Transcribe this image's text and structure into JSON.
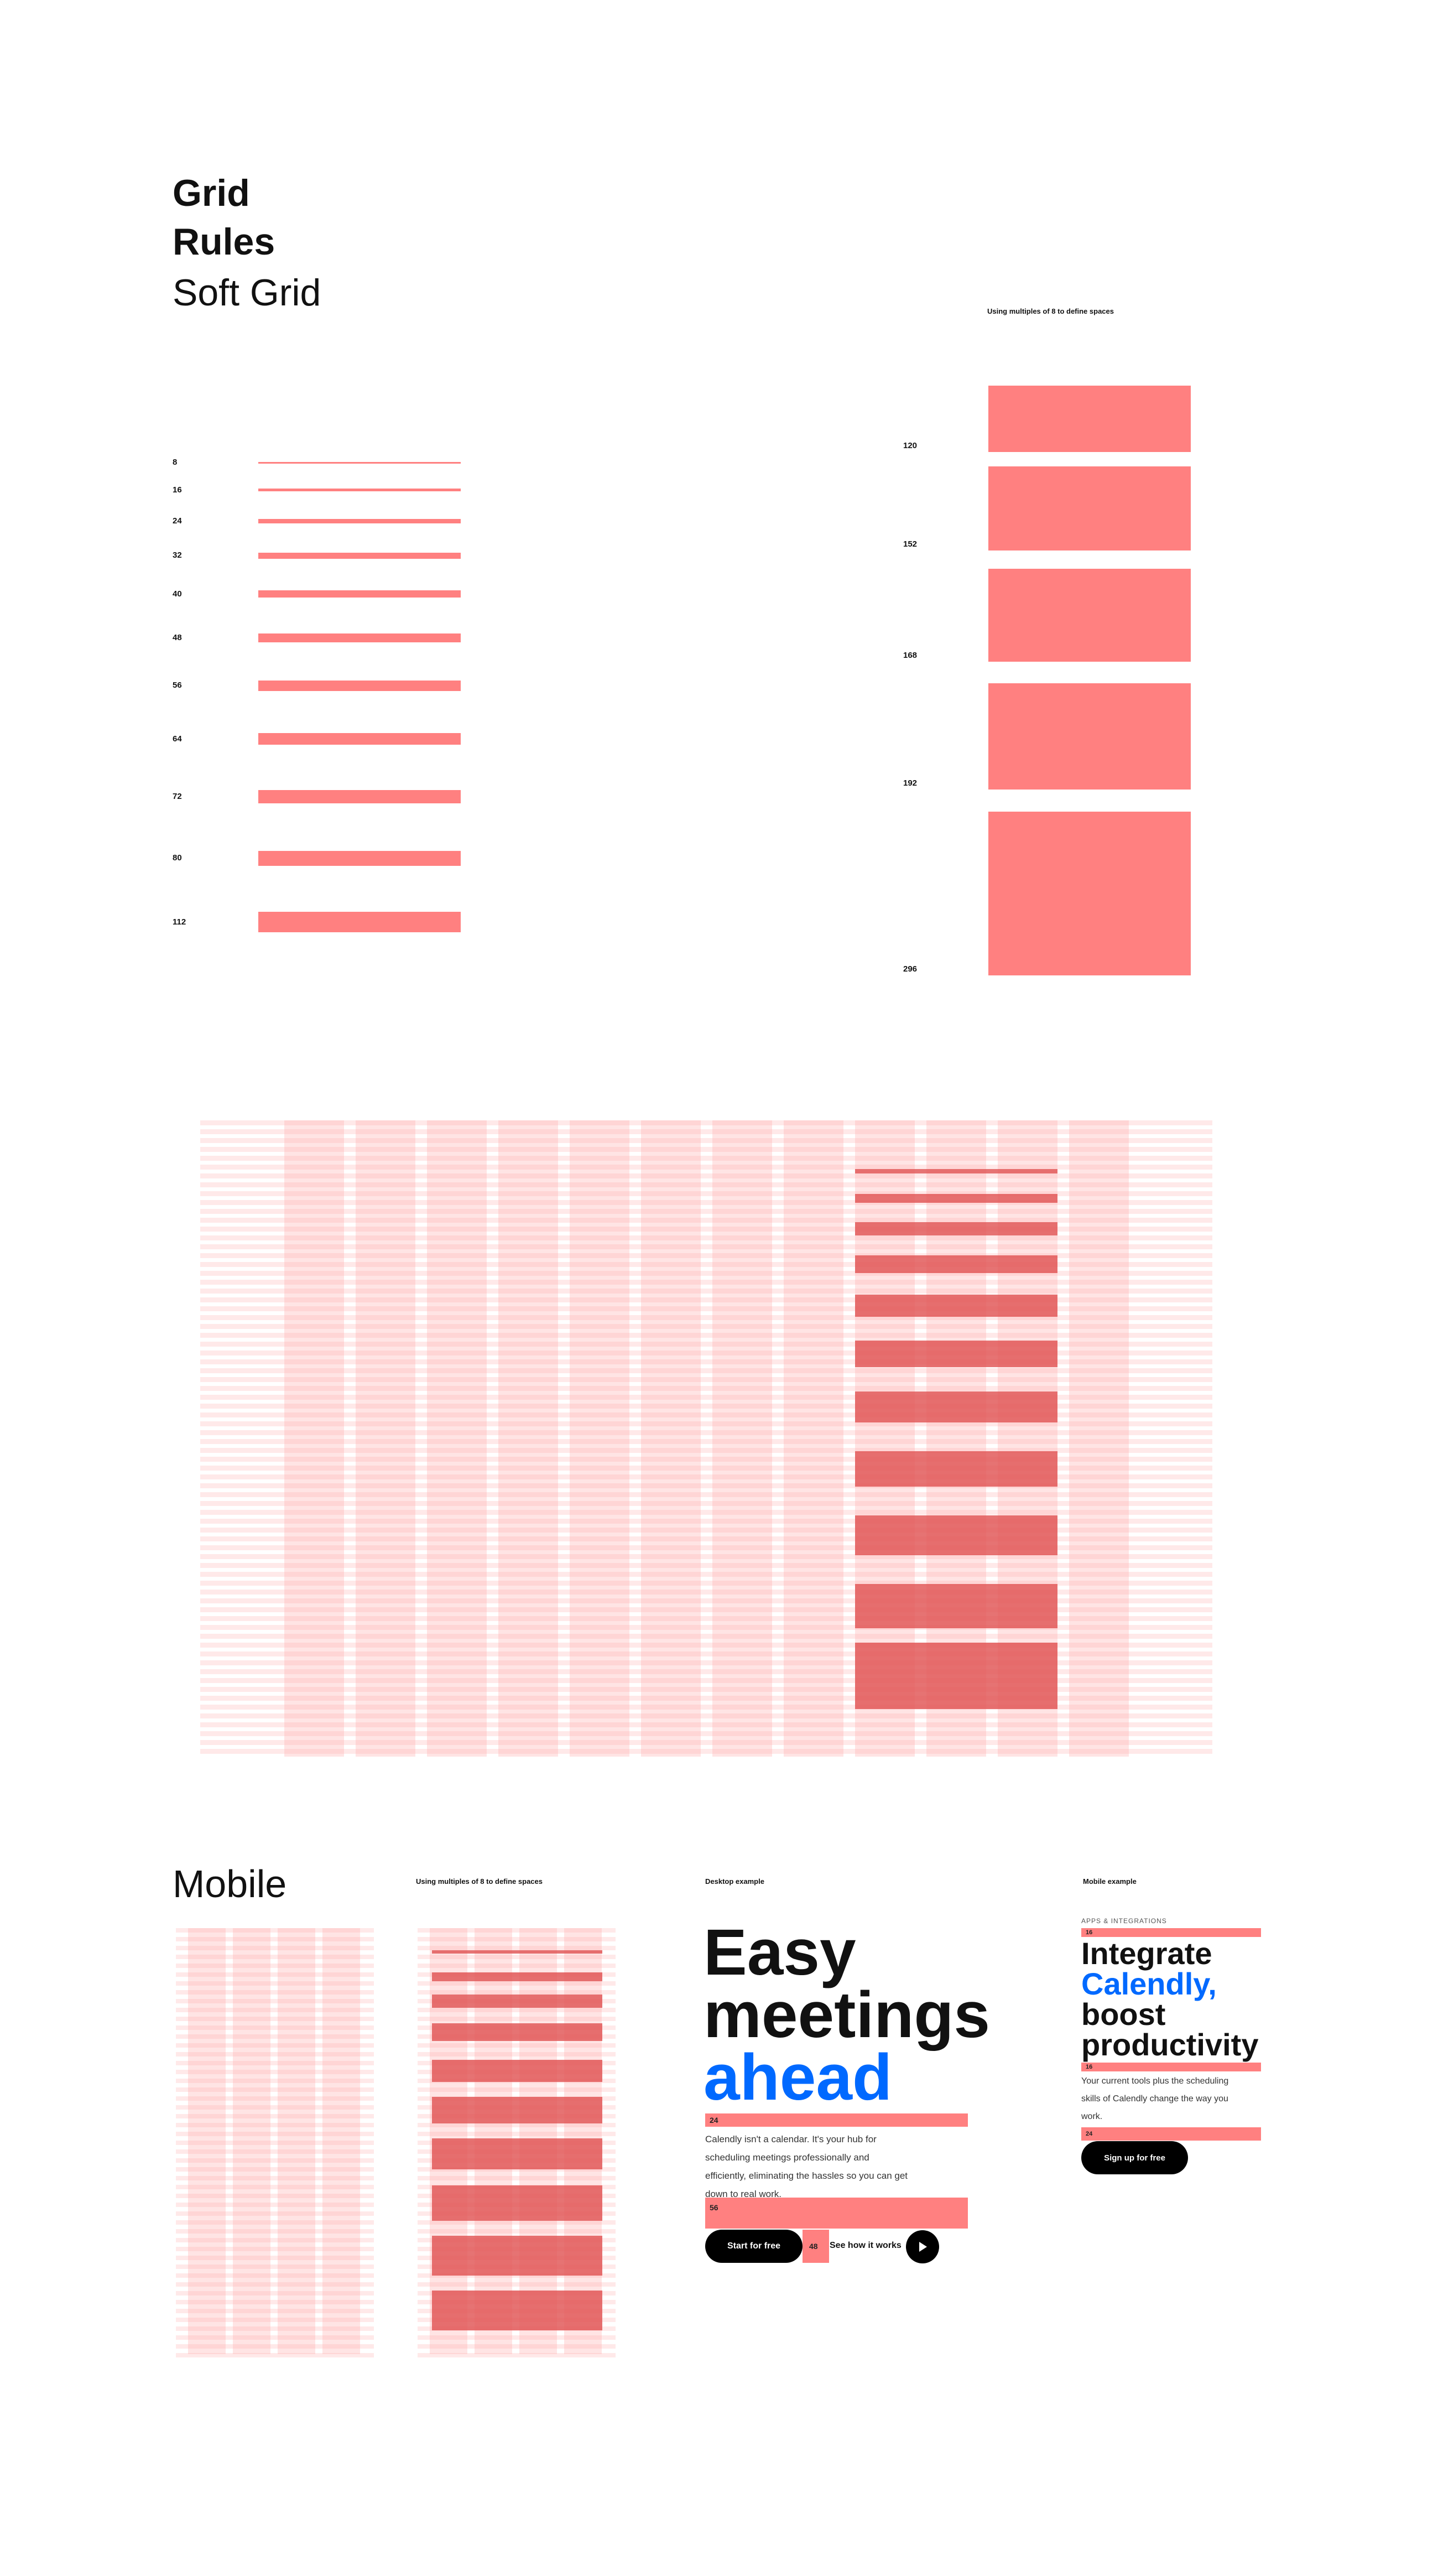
{
  "header": {
    "title_line1": "Grid",
    "title_line2": "Rules",
    "subtitle": "Soft Grid"
  },
  "spacing_note": "Using multiples of 8 to define spaces",
  "scale_left": [
    "8",
    "16",
    "24",
    "32",
    "40",
    "48",
    "56",
    "64",
    "72",
    "80",
    "112"
  ],
  "scale_right": [
    "120",
    "152",
    "168",
    "192",
    "296"
  ],
  "mobile": {
    "title": "Mobile",
    "note": "Using multiples of 8 to define spaces",
    "desktop_label": "Desktop example",
    "mobile_label": "Mobile example"
  },
  "desktop_example": {
    "h1": "Easy",
    "h2": "meetings",
    "h3": "ahead",
    "body_lines": [
      "Calendly isn't a calendar. It's your hub for",
      "scheduling meetings professionally and",
      "efficiently, eliminating the hassles so you can get",
      "down to real work."
    ],
    "marker_top": "24",
    "marker_bottom": "56",
    "marker_gap": "48",
    "cta_primary": "Start for free",
    "cta_secondary": "See how it works"
  },
  "mobile_example": {
    "eyebrow": "APPS & INTEGRATIONS",
    "h1": "Integrate",
    "h2": "Calendly,",
    "h3": "boost",
    "h4": "productivity",
    "body_lines": [
      "Your current tools plus the scheduling",
      "skills of Calendly change the way you",
      "work."
    ],
    "marker_a": "16",
    "marker_b": "16",
    "marker_c": "24",
    "cta": "Sign up for free"
  },
  "colors": {
    "accent": "#ff8080",
    "brand_blue": "#0069ff",
    "dark_bar": "#e05050"
  }
}
